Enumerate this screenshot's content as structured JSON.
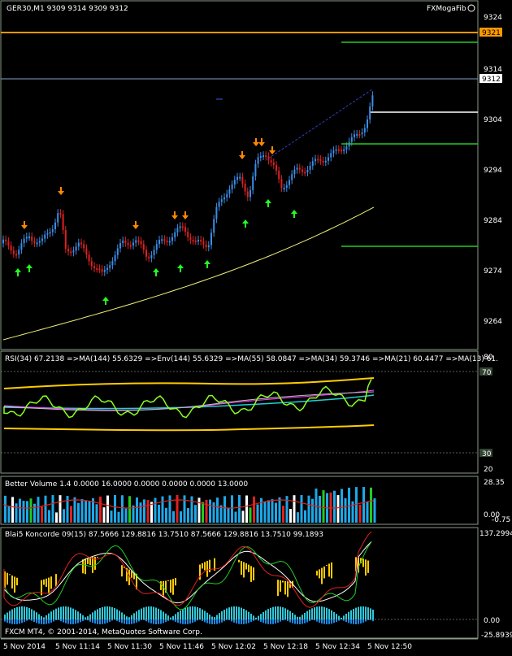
{
  "main": {
    "header": "GER30,M1  9309 9314 9309 9312",
    "indicator_name": "FXMogaFib",
    "price_labels": [
      "9324",
      "9314",
      "9304",
      "9294",
      "9284",
      "9274",
      "9264"
    ],
    "hline_orange_label": "9321",
    "hline_current_label": "9312"
  },
  "rsi": {
    "header": "RSI(34) 67.2138  =>MA(144) 55.6329  =>Env(144) 55.6329  =>MA(55) 58.0847  =>MA(34) 59.3746  =>MA(21) 60.4477  =>MA(13) 61.",
    "scale": [
      "80",
      "70",
      "30",
      "20"
    ]
  },
  "volume": {
    "header": "Better Volume 1.4 0.0000 16.0000 0.0000 0.0000 0.0000 13.0000",
    "scale": [
      "28.35",
      "0.00",
      "-0.75"
    ]
  },
  "koncorde": {
    "header": "Blai5 Koncorde 09(15) 87.5666 129.8816 13.7510 87.5666 129.8816 13.7510 99.1893",
    "scale": [
      "137.2994",
      "0.00",
      "-25.8939"
    ]
  },
  "copyright": "FXCM MT4, © 2001-2014, MetaQuotes Software Corp.",
  "time_axis": [
    "5 Nov 2014",
    "5 Nov 11:14",
    "5 Nov 11:30",
    "5 Nov 11:46",
    "5 Nov 12:02",
    "5 Nov 12:18",
    "5 Nov 12:34",
    "5 Nov 12:50"
  ],
  "colors": {
    "bull": "#3a8ee8",
    "bear": "#e02020",
    "orange_line": "#ff9900",
    "green_line": "#22cc22",
    "yellow_ma": "#f0f07a",
    "up_arrow": "#22ff22",
    "down_arrow": "#ff8800",
    "grid": "#6b7f6b"
  }
}
